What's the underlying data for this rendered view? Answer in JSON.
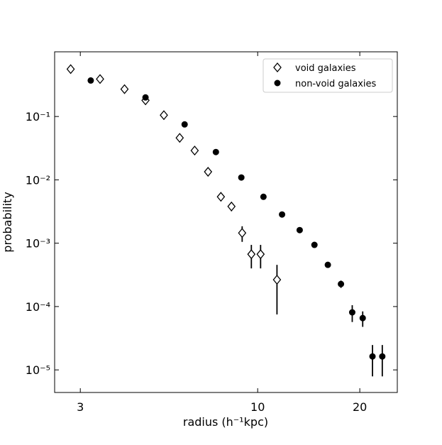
{
  "chart_data": {
    "type": "scatter",
    "xlabel": "radius (h⁻¹kpc)",
    "ylabel": "probability",
    "xscale": "log",
    "yscale": "log",
    "xlim": [
      2.52,
      25.8
    ],
    "ylim": [
      4.4e-06,
      1.05
    ],
    "xticks": [
      3,
      10,
      20
    ],
    "yticks": [
      {
        "value": 1e-05,
        "label": "10⁻⁵"
      },
      {
        "value": 0.0001,
        "label": "10⁻⁴"
      },
      {
        "value": 0.001,
        "label": "10⁻³"
      },
      {
        "value": 0.01,
        "label": "10⁻²"
      },
      {
        "value": 0.1,
        "label": "10⁻¹"
      }
    ],
    "legend": "upper right",
    "series": [
      {
        "name": "void galaxies",
        "color": "#000000",
        "marker": "diamond",
        "filled": false,
        "x": [
          2.81,
          3.43,
          4.05,
          4.67,
          5.29,
          5.89,
          6.52,
          7.14,
          7.79,
          8.37,
          9.0,
          9.58,
          10.2,
          11.4
        ],
        "values": [
          0.56,
          0.39,
          0.27,
          0.18,
          0.105,
          0.046,
          0.029,
          0.0134,
          0.0054,
          0.0038,
          0.00145,
          0.00067,
          0.00067,
          0.000265
        ],
        "errors": [
          null,
          null,
          null,
          null,
          null,
          null,
          null,
          null,
          0.0008,
          0.0006,
          0.0004,
          0.00027,
          0.00027,
          0.00019
        ]
      },
      {
        "name": "non-void galaxies",
        "color": "#000000",
        "marker": "circle",
        "filled": true,
        "x": [
          3.22,
          4.67,
          6.09,
          7.53,
          8.95,
          10.4,
          11.8,
          13.3,
          14.7,
          16.1,
          17.6,
          19.0,
          20.4,
          21.8,
          23.3
        ],
        "values": [
          0.37,
          0.2,
          0.075,
          0.0275,
          0.0109,
          0.0054,
          0.00284,
          0.00161,
          0.00094,
          0.000455,
          0.000227,
          8.1e-05,
          6.58e-05,
          1.63e-05,
          1.63e-05
        ],
        "errors": [
          null,
          null,
          null,
          null,
          null,
          null,
          null,
          null,
          null,
          null,
          3e-05,
          2.4e-05,
          1.8e-05,
          8.4e-06,
          8.4e-06
        ]
      }
    ]
  }
}
